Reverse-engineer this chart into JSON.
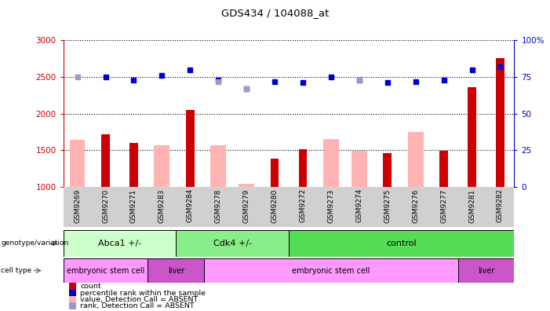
{
  "title": "GDS434 / 104088_at",
  "samples": [
    "GSM9269",
    "GSM9270",
    "GSM9271",
    "GSM9283",
    "GSM9284",
    "GSM9278",
    "GSM9279",
    "GSM9280",
    "GSM9272",
    "GSM9273",
    "GSM9274",
    "GSM9275",
    "GSM9276",
    "GSM9277",
    "GSM9281",
    "GSM9282"
  ],
  "count_values": [
    null,
    1720,
    1600,
    null,
    2050,
    null,
    null,
    1380,
    1510,
    null,
    null,
    1460,
    null,
    1490,
    2360,
    2760
  ],
  "absent_value_bars": [
    1640,
    null,
    null,
    1570,
    null,
    1570,
    1040,
    null,
    null,
    1650,
    1490,
    null,
    1750,
    null,
    null,
    null
  ],
  "percentile_rank": [
    null,
    75,
    73,
    76,
    80,
    73,
    67,
    72,
    71,
    75,
    73,
    71,
    72,
    73,
    80,
    82
  ],
  "absent_rank": [
    75,
    null,
    null,
    null,
    null,
    72,
    67,
    null,
    null,
    null,
    73,
    null,
    null,
    null,
    null,
    null
  ],
  "ylim_left": [
    1000,
    3000
  ],
  "ylim_right": [
    0,
    100
  ],
  "yticks_left": [
    1000,
    1500,
    2000,
    2500,
    3000
  ],
  "yticks_right": [
    0,
    25,
    50,
    75,
    100
  ],
  "count_color": "#cc0000",
  "absent_value_color": "#ffb3b3",
  "percentile_color": "#0000cc",
  "absent_rank_color": "#9999cc",
  "bg_color": "#ffffff",
  "xtick_bg_color": "#d0d0d0",
  "genotype_groups": [
    {
      "label": "Abca1 +/-",
      "start": 0,
      "end": 4,
      "color": "#ccffcc"
    },
    {
      "label": "Cdk4 +/-",
      "start": 4,
      "end": 8,
      "color": "#88ee88"
    },
    {
      "label": "control",
      "start": 8,
      "end": 16,
      "color": "#55dd55"
    }
  ],
  "cell_type_groups": [
    {
      "label": "embryonic stem cell",
      "start": 0,
      "end": 3,
      "color": "#ff99ff"
    },
    {
      "label": "liver",
      "start": 3,
      "end": 5,
      "color": "#cc55cc"
    },
    {
      "label": "embryonic stem cell",
      "start": 5,
      "end": 14,
      "color": "#ff99ff"
    },
    {
      "label": "liver",
      "start": 14,
      "end": 16,
      "color": "#cc55cc"
    }
  ],
  "legend_items": [
    {
      "label": "count",
      "color": "#cc0000"
    },
    {
      "label": "percentile rank within the sample",
      "color": "#0000cc"
    },
    {
      "label": "value, Detection Call = ABSENT",
      "color": "#ffb3b3"
    },
    {
      "label": "rank, Detection Call = ABSENT",
      "color": "#9999cc"
    }
  ]
}
